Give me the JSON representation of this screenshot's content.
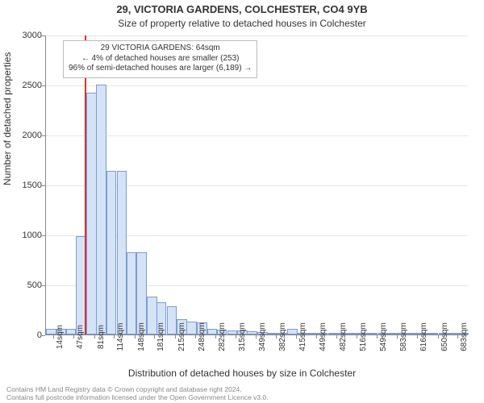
{
  "title": "29, VICTORIA GARDENS, COLCHESTER, CO4 9YB",
  "subtitle": "Size of property relative to detached houses in Colchester",
  "ylabel": "Number of detached properties",
  "xlabel": "Distribution of detached houses by size in Colchester",
  "chart": {
    "type": "histogram",
    "ylim": [
      0,
      3000
    ],
    "yticks": [
      0,
      500,
      1000,
      1500,
      2000,
      2500,
      3000
    ],
    "x_data_min": 0,
    "x_data_max": 700,
    "bin_width_sqm": 16.7,
    "bar_fill": "#d5e3f7",
    "bar_border": "#7a9cd4",
    "grid_color": "#e6e6e6",
    "axis_color": "#888888",
    "background": "#ffffff",
    "marker_sqm": 64,
    "marker_color": "#e03030",
    "xticks_sqm": [
      14,
      47,
      81,
      114,
      148,
      181,
      215,
      248,
      282,
      315,
      349,
      382,
      415,
      449,
      482,
      516,
      549,
      583,
      616,
      650,
      683
    ],
    "bins": [
      {
        "start": 0,
        "count": 60
      },
      {
        "start": 17,
        "count": 60
      },
      {
        "start": 33,
        "count": 60
      },
      {
        "start": 50,
        "count": 980
      },
      {
        "start": 67,
        "count": 2420
      },
      {
        "start": 83,
        "count": 2500
      },
      {
        "start": 100,
        "count": 1640
      },
      {
        "start": 117,
        "count": 1640
      },
      {
        "start": 133,
        "count": 820
      },
      {
        "start": 150,
        "count": 820
      },
      {
        "start": 167,
        "count": 380
      },
      {
        "start": 183,
        "count": 320
      },
      {
        "start": 200,
        "count": 280
      },
      {
        "start": 217,
        "count": 150
      },
      {
        "start": 233,
        "count": 130
      },
      {
        "start": 250,
        "count": 120
      },
      {
        "start": 267,
        "count": 60
      },
      {
        "start": 283,
        "count": 50
      },
      {
        "start": 300,
        "count": 40
      },
      {
        "start": 317,
        "count": 40
      },
      {
        "start": 333,
        "count": 30
      },
      {
        "start": 350,
        "count": 25
      },
      {
        "start": 367,
        "count": 20
      },
      {
        "start": 383,
        "count": 5
      },
      {
        "start": 400,
        "count": 60
      },
      {
        "start": 417,
        "count": 5
      },
      {
        "start": 433,
        "count": 5
      },
      {
        "start": 450,
        "count": 5
      },
      {
        "start": 467,
        "count": 2
      },
      {
        "start": 483,
        "count": 2
      },
      {
        "start": 500,
        "count": 2
      },
      {
        "start": 517,
        "count": 2
      },
      {
        "start": 533,
        "count": 2
      },
      {
        "start": 550,
        "count": 2
      },
      {
        "start": 567,
        "count": 2
      },
      {
        "start": 583,
        "count": 2
      },
      {
        "start": 600,
        "count": 2
      },
      {
        "start": 617,
        "count": 2
      },
      {
        "start": 633,
        "count": 2
      },
      {
        "start": 650,
        "count": 2
      },
      {
        "start": 667,
        "count": 2
      },
      {
        "start": 683,
        "count": 2
      }
    ]
  },
  "annotation": {
    "line1": "29 VICTORIA GARDENS: 64sqm",
    "line2": "← 4% of detached houses are smaller (253)",
    "line3": "96% of semi-detached houses are larger (6,189) →"
  },
  "footer": {
    "line1": "Contains HM Land Registry data © Crown copyright and database right 2024.",
    "line2": "Contains full postcode information licensed under the Open Government Licence v3.0."
  }
}
